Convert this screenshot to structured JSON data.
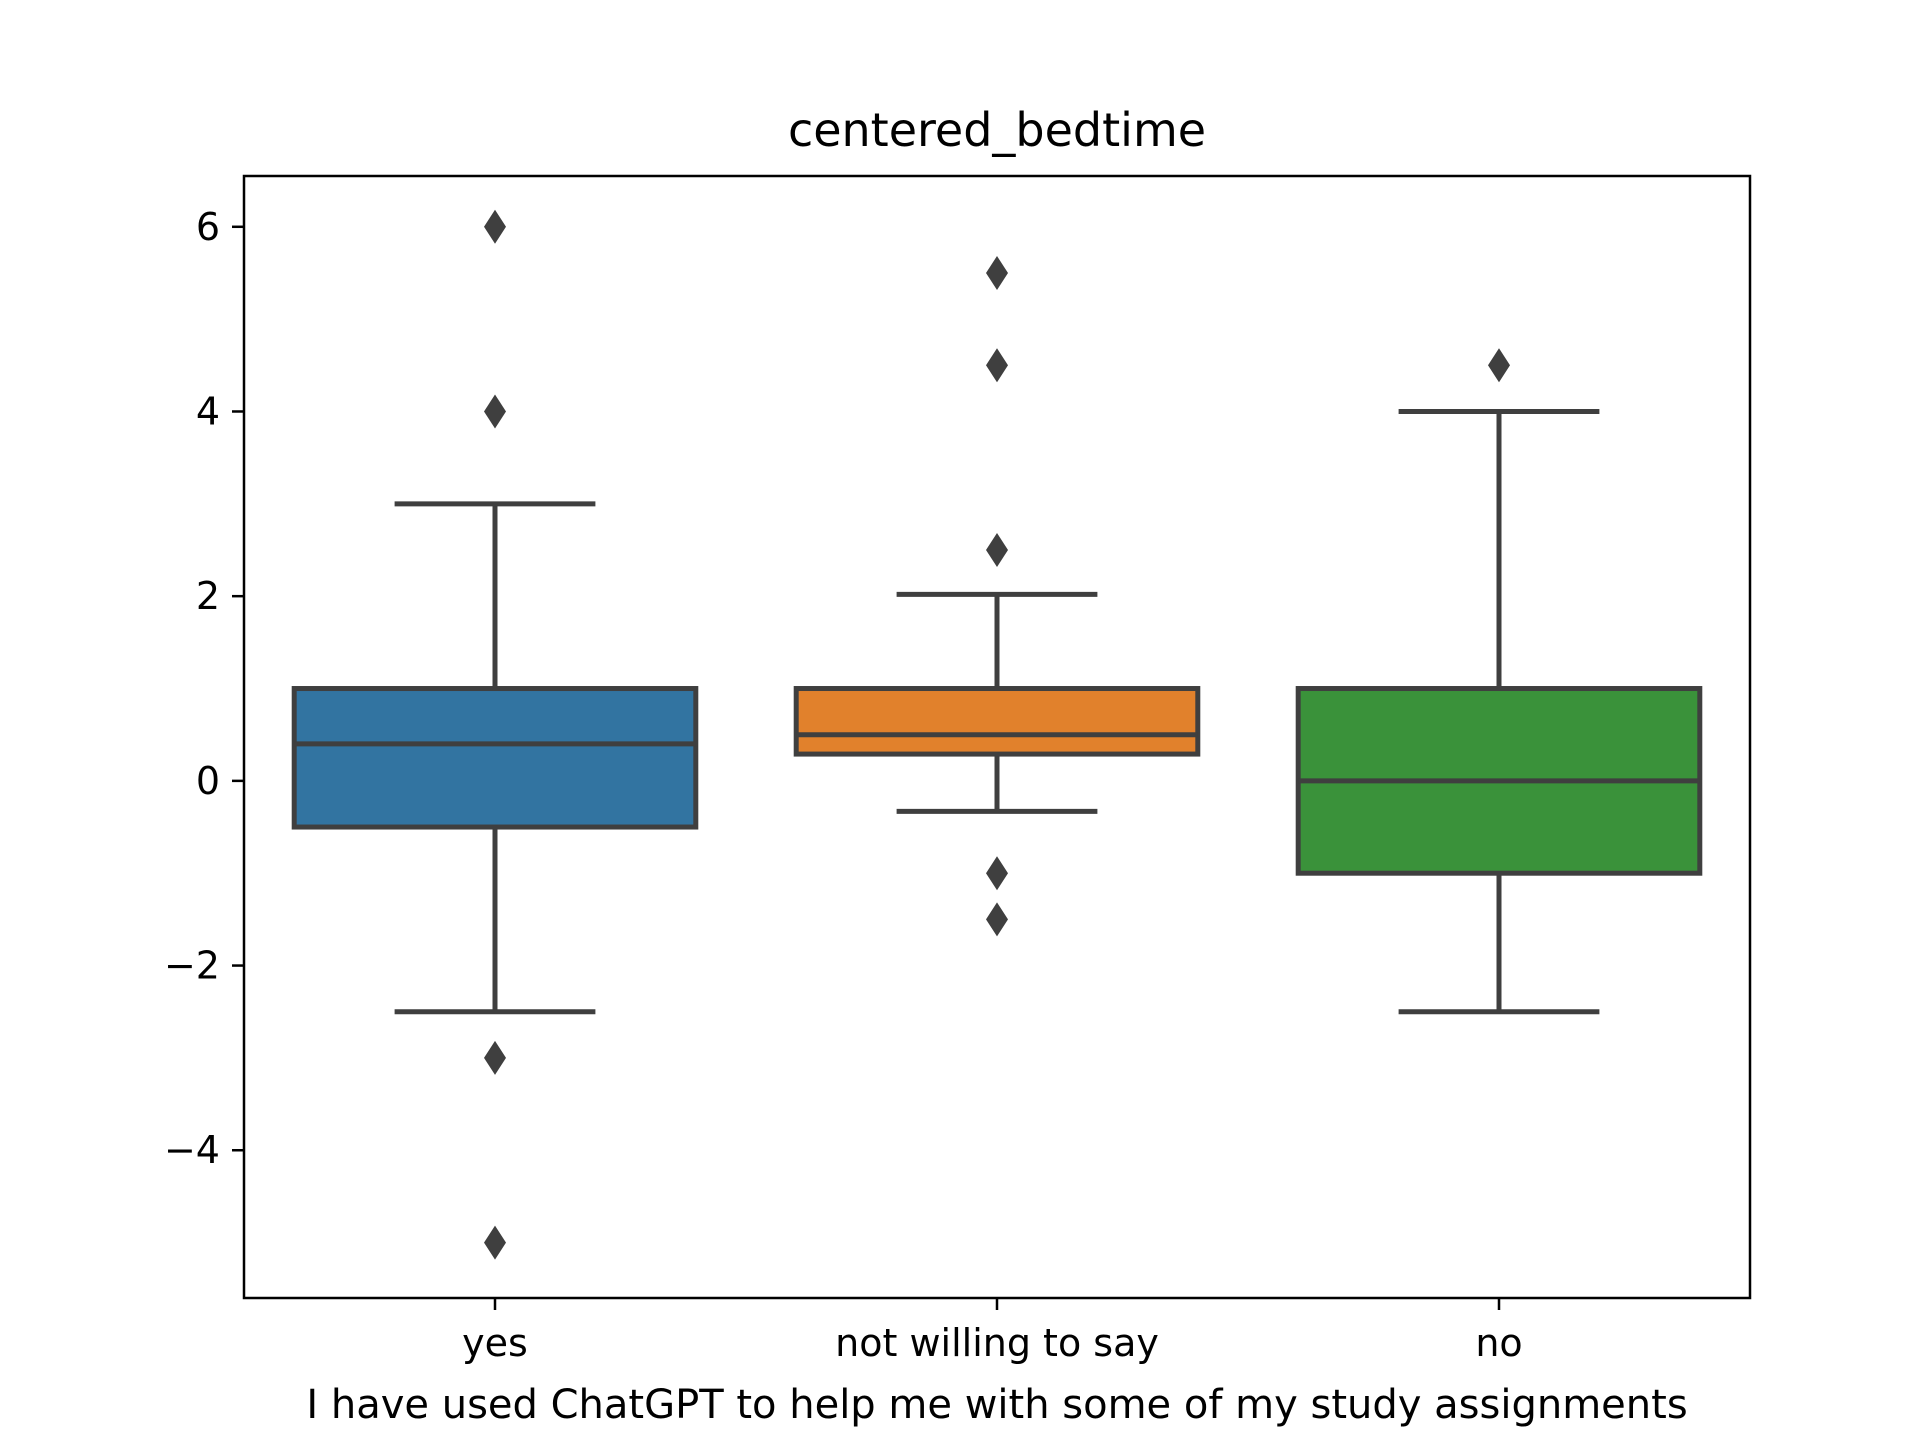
{
  "chart_data": {
    "type": "box",
    "title": "centered_bedtime",
    "xlabel": "I have used ChatGPT to help me with some of my study assignments",
    "ylabel": "",
    "ylim": [
      -5.6,
      6.55
    ],
    "yticks": [
      6,
      4,
      2,
      0,
      -2,
      -4
    ],
    "ytick_labels": [
      "6",
      "4",
      "2",
      "0",
      "−2",
      "−4"
    ],
    "grid": false,
    "categories": [
      "yes",
      "not willing to say",
      "no"
    ],
    "boxes": [
      {
        "category": "yes",
        "color": "#3274a1",
        "whisker_low": -2.5,
        "q1": -0.5,
        "median": 0.4,
        "q3": 1.0,
        "whisker_high": 3.0,
        "outliers": [
          6.0,
          4.0,
          -3.0,
          -5.0
        ]
      },
      {
        "category": "not willing to say",
        "color": "#e1812c",
        "whisker_low": -0.33,
        "q1": 0.29,
        "median": 0.5,
        "q3": 1.0,
        "whisker_high": 2.02,
        "outliers": [
          5.5,
          4.5,
          2.5,
          -1.0,
          -1.5
        ]
      },
      {
        "category": "no",
        "color": "#3a923a",
        "whisker_low": -2.5,
        "q1": -1.0,
        "median": 0.0,
        "q3": 1.0,
        "whisker_high": 4.0,
        "outliers": [
          4.5
        ]
      }
    ],
    "line_color": "#3f3f3f"
  }
}
